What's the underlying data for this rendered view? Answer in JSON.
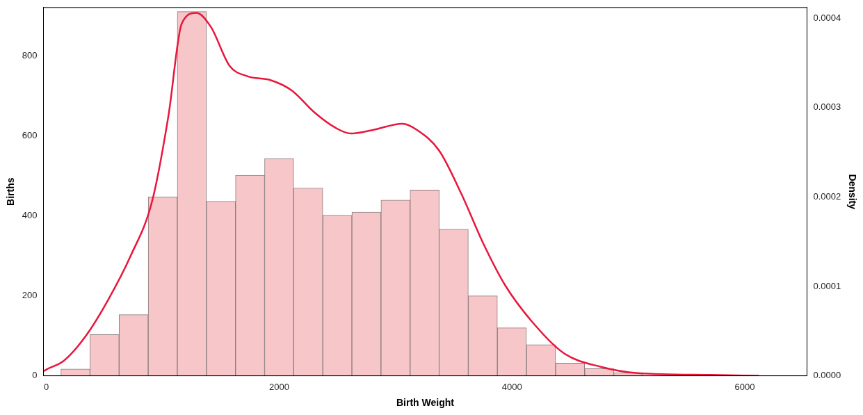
{
  "chart_data": {
    "type": "histogram",
    "xlabel": "Birth Weight",
    "ylabel": "Births",
    "y2label": "Density",
    "xlim": [
      -25,
      6535
    ],
    "xticks": [
      0,
      2000,
      4000,
      6000
    ],
    "ylim": [
      0,
      922
    ],
    "yticks": [
      0,
      200,
      400,
      600,
      800
    ],
    "y2lim": [
      0,
      0.000412
    ],
    "y2ticks": [
      {
        "value": 0,
        "label": "0.0000"
      },
      {
        "value": 0.0001,
        "label": "0.0001"
      },
      {
        "value": 0.0002,
        "label": "0.0002"
      },
      {
        "value": 0.0003,
        "label": "0.0003"
      },
      {
        "value": 0.0004,
        "label": "0.0004"
      }
    ],
    "grid": false,
    "legend": false,
    "series": [
      {
        "color": "#f6c6c8",
        "bins": [
          125,
          375,
          625,
          875,
          1125,
          1375,
          1625,
          1875,
          2125,
          2375,
          2625,
          2875,
          3125,
          3375,
          3625,
          3875,
          4125,
          4375,
          4625,
          4875,
          5125
        ],
        "values": [
          17,
          103,
          153,
          448,
          912,
          437,
          502,
          544,
          470,
          402,
          410,
          440,
          465,
          367,
          200,
          120,
          78,
          32,
          18,
          8
        ]
      },
      {
        "type": "line",
        "color": "#e8163c",
        "axis": "y2",
        "x": [
          -25,
          0,
          152,
          341,
          531,
          720,
          910,
          1049,
          1163,
          1289,
          1415,
          1573,
          1731,
          1921,
          2111,
          2300,
          2490,
          2616,
          2806,
          3059,
          3185,
          3374,
          3564,
          3754,
          3943,
          4196,
          4449,
          4765,
          5081,
          5713,
          6123
        ],
        "values": [
          5e-06,
          7e-06,
          1.7e-05,
          4.5e-05,
          8.5e-05,
          0.000133,
          0.000196,
          0.000291,
          0.000394,
          0.000406,
          0.00039,
          0.000347,
          0.000335,
          0.000331,
          0.000319,
          0.000295,
          0.000277,
          0.000271,
          0.000275,
          0.000282,
          0.000275,
          0.000252,
          0.000204,
          0.000148,
          0.000101,
          5.7e-05,
          2.5e-05,
          1e-05,
          3e-06,
          1e-06,
          0
        ]
      }
    ]
  }
}
